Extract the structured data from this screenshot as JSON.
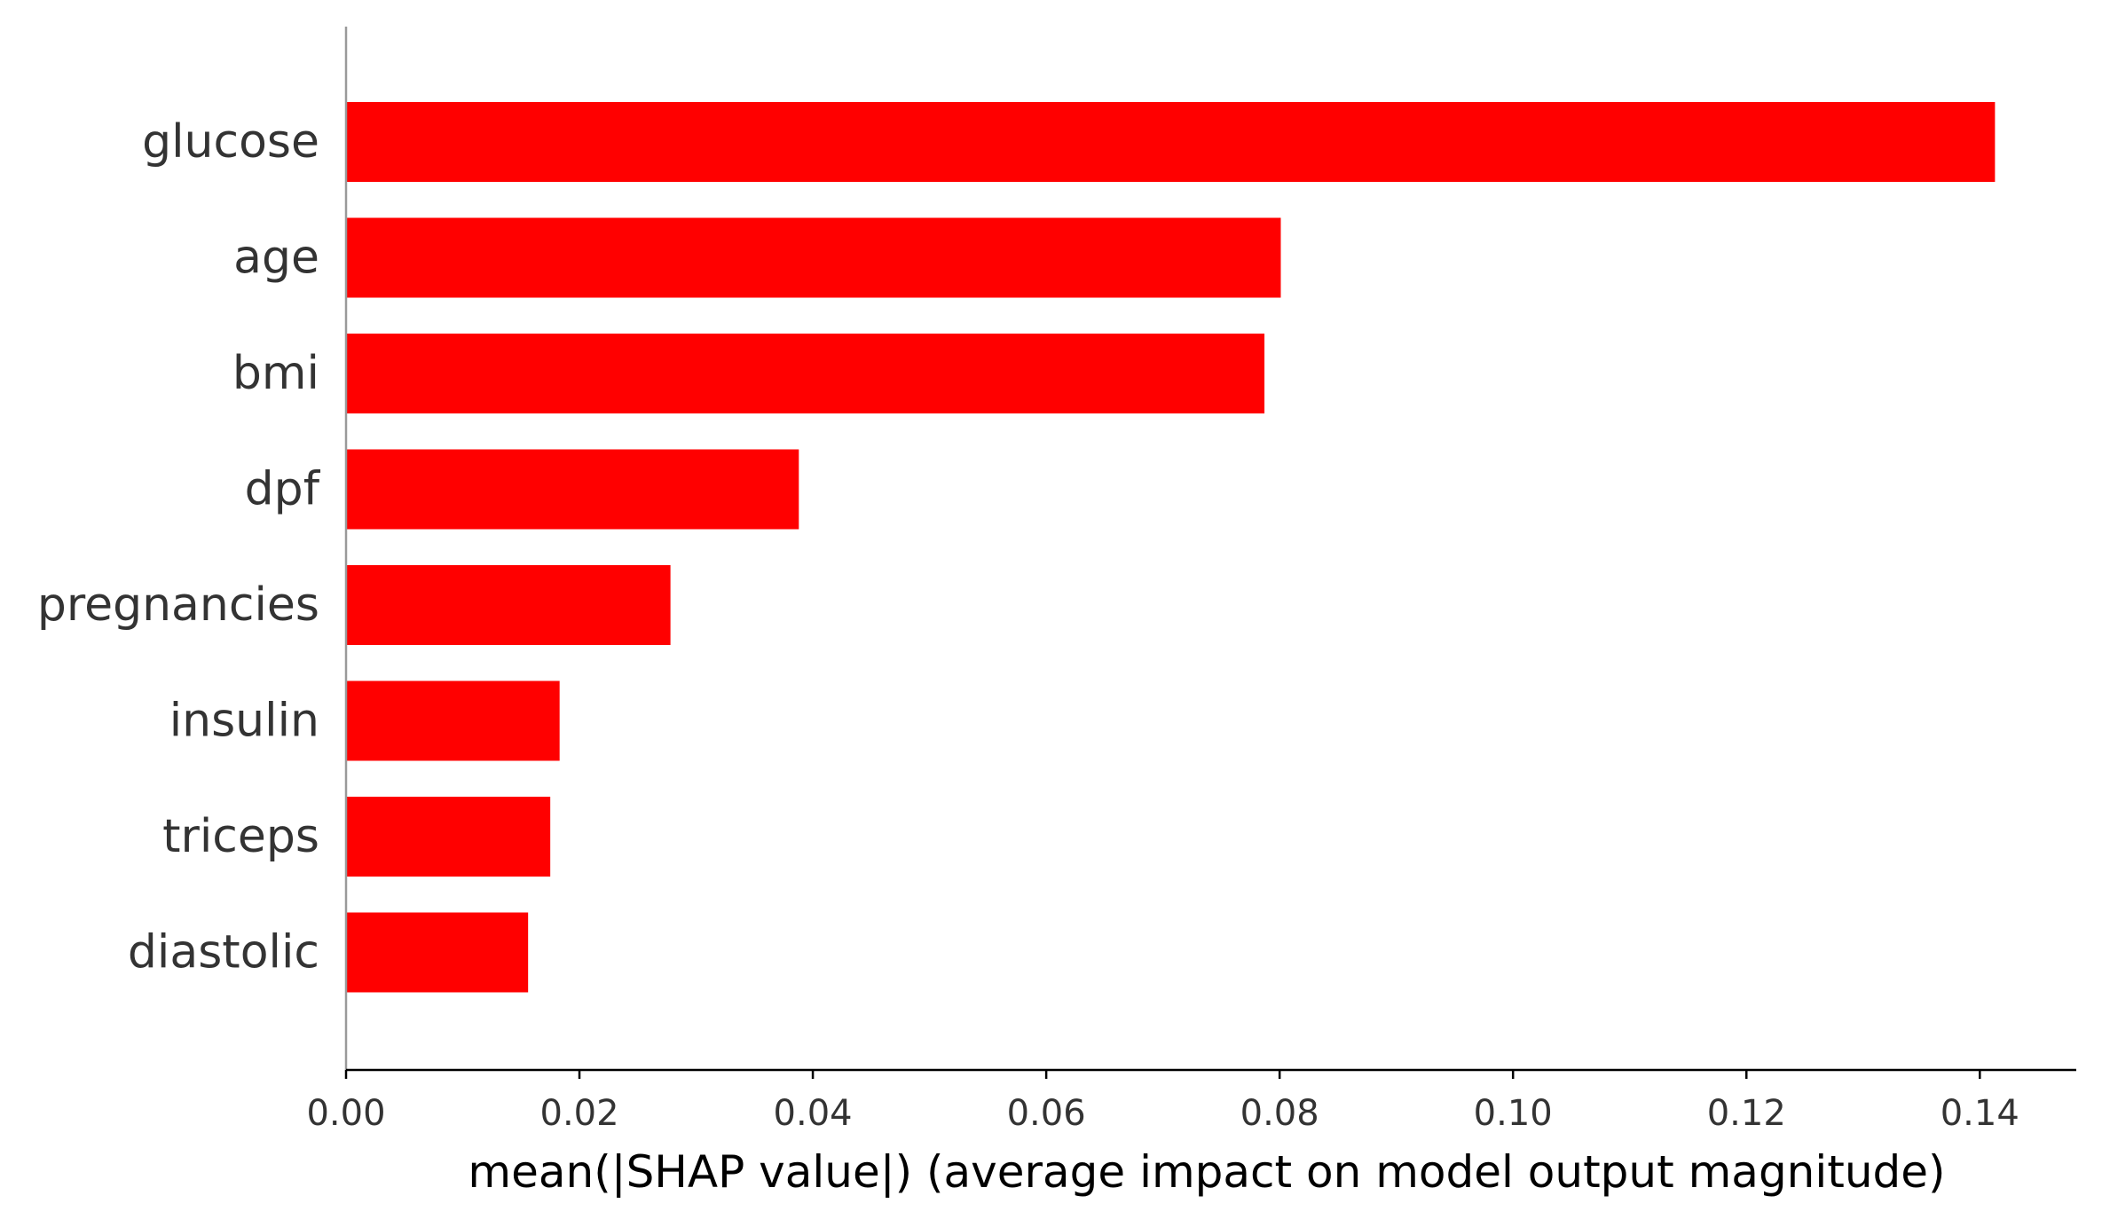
{
  "chart_data": {
    "type": "bar",
    "orientation": "horizontal",
    "categories": [
      "glucose",
      "age",
      "bmi",
      "dpf",
      "pregnancies",
      "insulin",
      "triceps",
      "diastolic"
    ],
    "values": [
      0.1413,
      0.0801,
      0.0787,
      0.0388,
      0.0278,
      0.0183,
      0.0175,
      0.0156
    ],
    "xticks": [
      "0.00",
      "0.02",
      "0.04",
      "0.06",
      "0.08",
      "0.10",
      "0.12",
      "0.14"
    ],
    "xtick_values": [
      0,
      0.02,
      0.04,
      0.06,
      0.08,
      0.1,
      0.12,
      0.14
    ],
    "xlabel": "mean(|SHAP value|) (average impact on model output magnitude)",
    "ylabel": "",
    "title": "",
    "xlim": [
      0,
      0.148
    ],
    "bar_color": "#ff0000",
    "grid": false,
    "legend": "none"
  }
}
